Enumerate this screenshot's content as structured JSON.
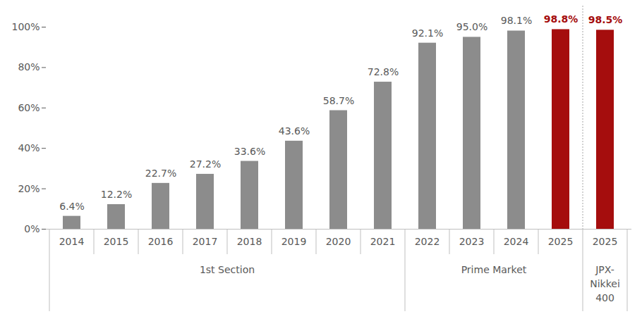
{
  "chart_data": {
    "type": "bar",
    "categories": [
      "2014",
      "2015",
      "2016",
      "2017",
      "2018",
      "2019",
      "2020",
      "2021",
      "2022",
      "2023",
      "2024",
      "2025",
      "2025"
    ],
    "category_groups": [
      "1st Section",
      "1st Section",
      "1st Section",
      "1st Section",
      "1st Section",
      "1st Section",
      "1st Section",
      "1st Section",
      "Prime Market",
      "Prime Market",
      "Prime Market",
      "Prime Market",
      "JPX-Nikkei 400"
    ],
    "values": [
      6.4,
      12.2,
      22.7,
      27.2,
      33.6,
      43.6,
      58.7,
      72.8,
      92.1,
      95.0,
      98.1,
      98.8,
      98.5
    ],
    "value_labels": [
      "6.4%",
      "12.2%",
      "22.7%",
      "27.2%",
      "33.6%",
      "43.6%",
      "58.7%",
      "72.8%",
      "92.1%",
      "95.0%",
      "98.1%",
      "98.8%",
      "98.5%"
    ],
    "colors": [
      "#8c8c8c",
      "#8c8c8c",
      "#8c8c8c",
      "#8c8c8c",
      "#8c8c8c",
      "#8c8c8c",
      "#8c8c8c",
      "#8c8c8c",
      "#8c8c8c",
      "#8c8c8c",
      "#8c8c8c",
      "#a50d0d",
      "#a50d0d"
    ],
    "ylim": [
      0,
      100
    ],
    "yticks": [
      {
        "value": 0,
        "label": "0%"
      },
      {
        "value": 20,
        "label": "20%"
      },
      {
        "value": 40,
        "label": "40%"
      },
      {
        "value": 60,
        "label": "60%"
      },
      {
        "value": 80,
        "label": "80%"
      },
      {
        "value": 100,
        "label": "100%"
      }
    ],
    "grid": false,
    "data_labels": true
  }
}
